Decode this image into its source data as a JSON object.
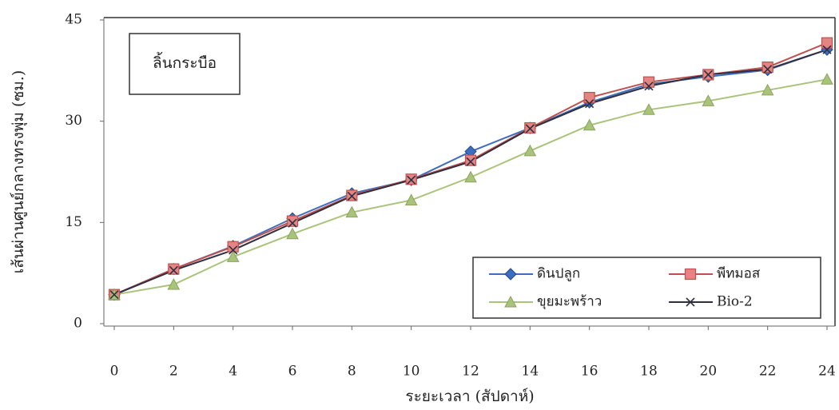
{
  "chart_data": {
    "type": "line",
    "annotation": "ลิ้นกระบือ",
    "x_label": "ระยะเวลา (สัปดาห์)",
    "y_label": "เส้นผ่านศูนย์กลางทรงพุ่ม (ซม.)",
    "x": [
      0,
      2,
      4,
      6,
      8,
      10,
      12,
      14,
      16,
      18,
      20,
      22,
      24
    ],
    "xlim": [
      0,
      24
    ],
    "xticks": [
      0,
      2,
      4,
      6,
      8,
      10,
      12,
      14,
      16,
      18,
      20,
      22,
      24
    ],
    "ylim": [
      0,
      45
    ],
    "yticks": [
      0,
      15,
      30,
      45
    ],
    "series": [
      {
        "name": "ดินปลูก",
        "color": "#3d6dbf",
        "marker": "diamond",
        "values": [
          4.3,
          8.1,
          11.5,
          15.6,
          19.3,
          21.3,
          25.5,
          29.0,
          32.8,
          35.5,
          36.6,
          37.6,
          40.6
        ]
      },
      {
        "name": "พีทมอส",
        "color": "#c0504d",
        "marker": "square",
        "values": [
          4.3,
          8.1,
          11.4,
          15.2,
          19.0,
          21.4,
          24.2,
          29.0,
          33.5,
          35.8,
          36.9,
          38.0,
          41.6
        ]
      },
      {
        "name": "ขุยมะพร้าว",
        "color": "#a9c47a",
        "marker": "triangle",
        "values": [
          4.3,
          5.8,
          9.9,
          13.3,
          16.5,
          18.3,
          21.7,
          25.6,
          29.4,
          31.7,
          33.0,
          34.6,
          36.2
        ]
      },
      {
        "name": "Bio-2",
        "color": "#2f2f3f",
        "marker": "cross",
        "values": [
          4.3,
          7.9,
          10.9,
          14.9,
          18.9,
          21.3,
          24.0,
          28.9,
          32.6,
          35.2,
          36.9,
          37.7,
          40.6
        ]
      }
    ]
  }
}
